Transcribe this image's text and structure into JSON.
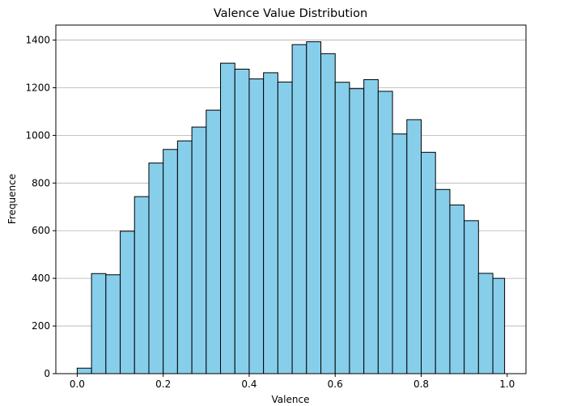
{
  "chart_data": {
    "type": "bar",
    "title": "Valence Value Distribution",
    "xlabel": "Valence",
    "ylabel": "Frequence",
    "xlim": [
      -0.0497,
      1.0437
    ],
    "ylim": [
      0,
      1463
    ],
    "xticks": [
      0.0,
      0.2,
      0.4,
      0.6,
      0.8,
      1.0
    ],
    "xtick_labels": [
      "0.0",
      "0.2",
      "0.4",
      "0.6",
      "0.8",
      "1.0"
    ],
    "yticks": [
      0,
      200,
      400,
      600,
      800,
      1000,
      1200,
      1400
    ],
    "ytick_labels": [
      "0",
      "200",
      "400",
      "600",
      "800",
      "1000",
      "1200",
      "1400"
    ],
    "grid": "y",
    "bar_color": "#87ceeb",
    "edge_color": "#000000",
    "bin_edges": [
      0.0,
      0.0333,
      0.0667,
      0.1,
      0.1333,
      0.1667,
      0.2,
      0.2333,
      0.2667,
      0.3,
      0.3333,
      0.3667,
      0.4,
      0.4333,
      0.4667,
      0.5,
      0.5333,
      0.5667,
      0.6,
      0.6333,
      0.6667,
      0.7,
      0.7333,
      0.7667,
      0.8,
      0.8333,
      0.8667,
      0.9,
      0.9333,
      0.9667,
      0.994
    ],
    "values": [
      23,
      420,
      415,
      598,
      743,
      884,
      941,
      977,
      1035,
      1106,
      1303,
      1278,
      1237,
      1263,
      1224,
      1381,
      1393,
      1343,
      1223,
      1196,
      1234,
      1185,
      1006,
      1066,
      929,
      773,
      708,
      642,
      421,
      400
    ]
  }
}
